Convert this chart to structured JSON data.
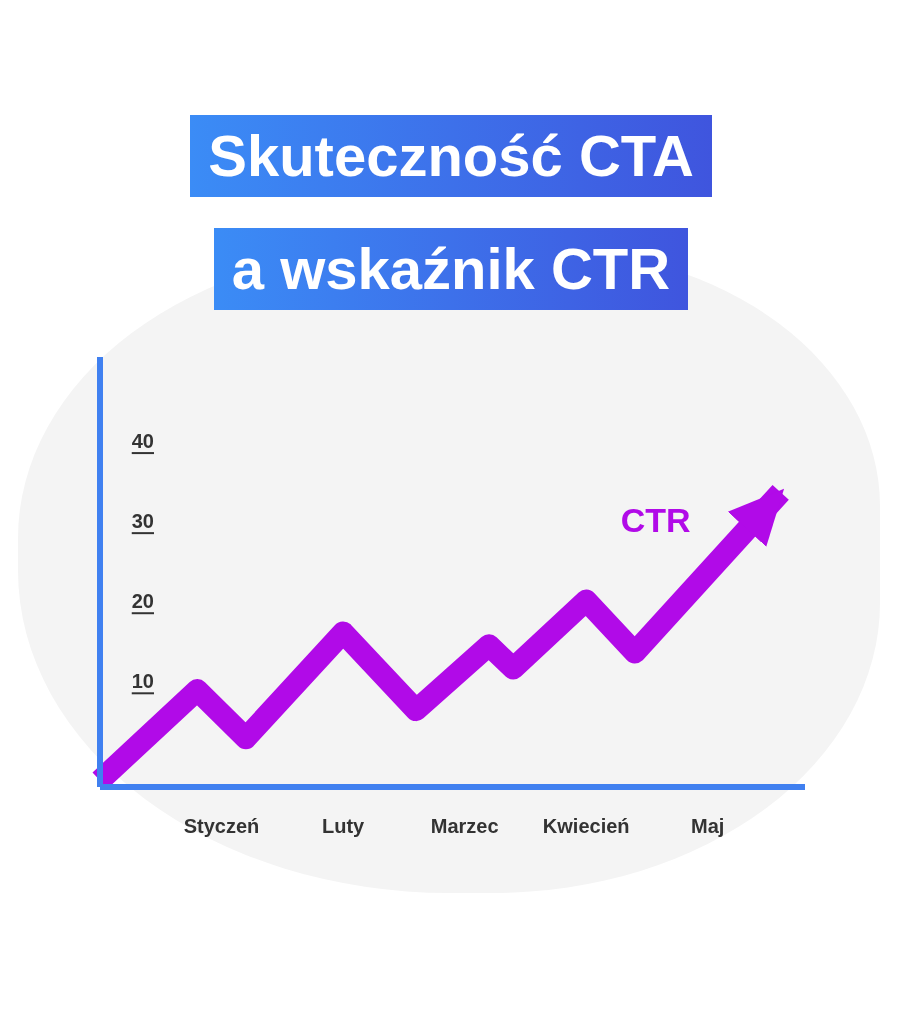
{
  "chart_data": {
    "type": "line",
    "title": "Skuteczność CTA\na wskaźnik CTR",
    "categories": [
      null,
      null,
      null,
      null,
      null,
      "Styczeń",
      null,
      null,
      null,
      null,
      "Luty",
      null,
      null,
      null,
      null,
      "Marzec",
      null,
      null,
      null,
      null,
      "Kwiecień",
      null,
      null,
      null,
      null,
      "Maj",
      null,
      null,
      null,
      null
    ],
    "series": [
      {
        "name": "CTR",
        "color": "#b10ae8",
        "values": [
          -2.4,
          null,
          null,
          null,
          8.9,
          null,
          2.9,
          null,
          null,
          null,
          16.1,
          null,
          null,
          6.4,
          null,
          null,
          14.5,
          11.6,
          null,
          null,
          20.1,
          null,
          13.6,
          null,
          null,
          null,
          null,
          null,
          33.6,
          null
        ]
      }
    ],
    "ylim": [
      -3.2,
      50.5
    ],
    "yticks": [
      10,
      20,
      30,
      40
    ],
    "marker": "none",
    "line_style": "solid"
  }
}
